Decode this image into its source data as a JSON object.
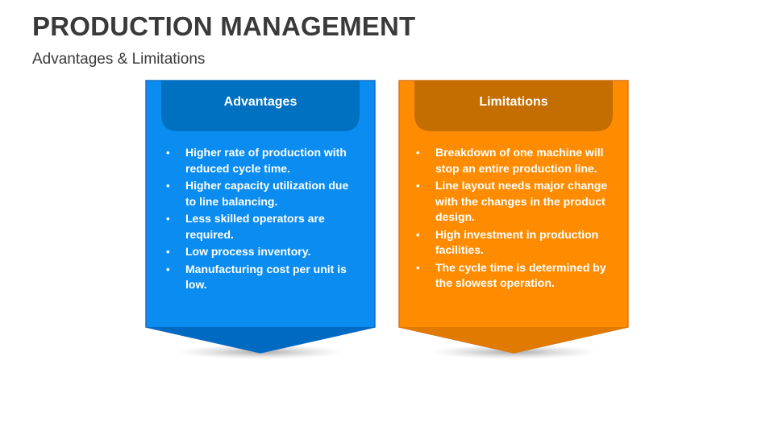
{
  "title": "PRODUCTION MANAGEMENT",
  "subtitle": "Advantages & Limitations",
  "colors": {
    "advantages_fill": "#0A8CF0",
    "advantages_header": "#0070C0",
    "advantages_border": "#1A6FC4",
    "limitations_fill": "#FF8C00",
    "limitations_header": "#C46D00",
    "limitations_border": "#D9771F"
  },
  "cards": [
    {
      "heading": "Advantages",
      "items": [
        "Higher rate of production with reduced cycle time.",
        "Higher capacity utilization due to line balancing.",
        "Less skilled operators are required.",
        "Low process inventory.",
        "Manufacturing cost per unit is low."
      ]
    },
    {
      "heading": "Limitations",
      "items": [
        "Breakdown of one machine will stop an entire production line.",
        "Line layout needs major change with the changes in the product design.",
        "High investment in production facilities.",
        "The cycle time is determined by the slowest operation."
      ]
    }
  ]
}
